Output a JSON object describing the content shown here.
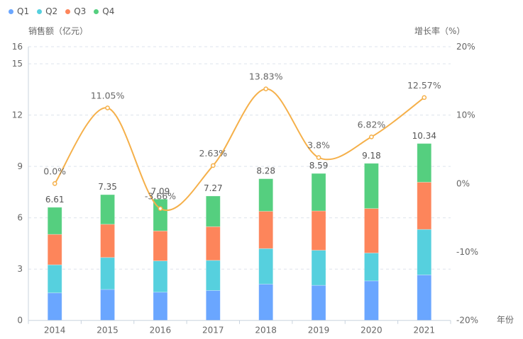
{
  "chart_data": {
    "type": "bar",
    "subtype": "stacked-bar-with-line",
    "title": "",
    "categories": [
      "2014",
      "2015",
      "2016",
      "2017",
      "2018",
      "2019",
      "2020",
      "2021"
    ],
    "xlabel": "年份",
    "ylabel": "销售额（亿元）",
    "y2label": "增长率（%）",
    "ylim": [
      0,
      16
    ],
    "yticks": [
      0,
      3,
      6,
      9,
      12,
      15,
      16
    ],
    "y2lim": [
      -20,
      20
    ],
    "y2ticks": [
      "-20%",
      "-10%",
      "0%",
      "10%",
      "20%"
    ],
    "y2tick_values": [
      -20,
      -10,
      0,
      10,
      20
    ],
    "grid": true,
    "legend_position": "top-left",
    "series": [
      {
        "name": "Q1",
        "type": "bar",
        "color": "#6aa6ff",
        "values": [
          1.61,
          1.81,
          1.65,
          1.75,
          2.12,
          2.05,
          2.31,
          2.66
        ]
      },
      {
        "name": "Q2",
        "type": "bar",
        "color": "#56d0de",
        "values": [
          1.64,
          1.87,
          1.83,
          1.76,
          2.08,
          2.05,
          1.63,
          2.66
        ]
      },
      {
        "name": "Q3",
        "type": "bar",
        "color": "#fd855b",
        "values": [
          1.78,
          1.94,
          1.75,
          1.97,
          2.18,
          2.3,
          2.6,
          2.76
        ]
      },
      {
        "name": "Q4",
        "type": "bar",
        "color": "#55cf7f",
        "values": [
          1.58,
          1.73,
          1.86,
          1.79,
          1.9,
          2.19,
          2.64,
          2.26
        ]
      }
    ],
    "totals": [
      6.61,
      7.35,
      7.09,
      7.27,
      8.28,
      8.59,
      9.18,
      10.34
    ],
    "total_labels": [
      "6.61",
      "7.35",
      "7.09",
      "7.27",
      "8.28",
      "8.59",
      "9.18",
      "10.34"
    ],
    "growth": {
      "name": "增长率",
      "type": "line",
      "smooth": true,
      "color": "#f5b04a",
      "values": [
        0.0,
        11.05,
        -3.66,
        2.63,
        13.83,
        3.8,
        6.82,
        12.57
      ],
      "labels": [
        "0.0%",
        "11.05%",
        "-3.66%",
        "2.63%",
        "13.83%",
        "3.8%",
        "6.82%",
        "12.57%"
      ]
    }
  },
  "legend": {
    "items": [
      {
        "label": "Q1",
        "color": "#6aa6ff"
      },
      {
        "label": "Q2",
        "color": "#56d0de"
      },
      {
        "label": "Q3",
        "color": "#fd855b"
      },
      {
        "label": "Q4",
        "color": "#55cf7f"
      }
    ]
  },
  "colors": {
    "grid": "#dde3ec",
    "axis": "#c9d3de",
    "text": "#666666"
  }
}
